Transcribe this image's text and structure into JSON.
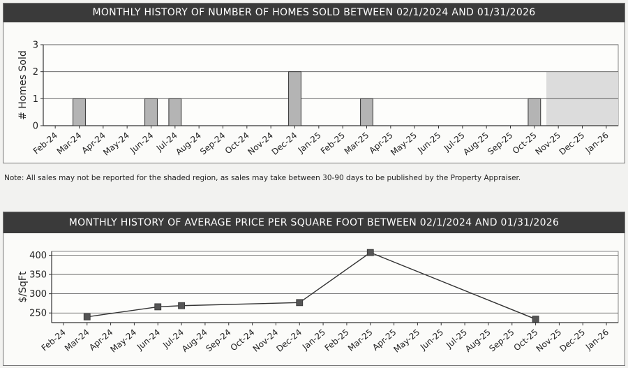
{
  "note": "Note: All sales may not be reported for the shaded region, as sales may take between 30-90 days to be published by the Property Appraiser.",
  "colors": {
    "banner_bg": "#3a3a3a",
    "bar_fill": "#b4b4b4",
    "shaded_region": "#dcdcdc",
    "line": "#333333",
    "marker": "#555555"
  },
  "chart_data": [
    {
      "type": "bar",
      "title": "MONTHLY HISTORY OF NUMBER OF HOMES SOLD BETWEEN 02/1/2024 AND 01/31/2026",
      "xlabel": "",
      "ylabel": "# Homes Sold",
      "ylim": [
        0,
        3
      ],
      "yticks": [
        0,
        1,
        2,
        3
      ],
      "grid": true,
      "categories": [
        "Feb-24",
        "Mar-24",
        "Apr-24",
        "May-24",
        "Jun-24",
        "Jul-24",
        "Aug-24",
        "Sep-24",
        "Oct-24",
        "Nov-24",
        "Dec-24",
        "Jan-25",
        "Feb-25",
        "Mar-25",
        "Apr-25",
        "May-25",
        "Jun-25",
        "Jul-25",
        "Aug-25",
        "Sep-25",
        "Oct-25",
        "Nov-25",
        "Dec-25",
        "Jan-26"
      ],
      "values": [
        0,
        1,
        0,
        0,
        1,
        1,
        0,
        0,
        0,
        0,
        2,
        0,
        0,
        1,
        0,
        0,
        0,
        0,
        0,
        0,
        1,
        0,
        0,
        0
      ],
      "shaded_categories": [
        "Nov-25",
        "Dec-25",
        "Jan-26"
      ],
      "shaded_max": 2
    },
    {
      "type": "line",
      "title": "MONTHLY HISTORY OF AVERAGE PRICE PER SQUARE FOOT BETWEEN 02/1/2024 AND 01/31/2026",
      "xlabel": "",
      "ylabel": "$/SqFt",
      "ylim": [
        225,
        410
      ],
      "yticks": [
        250,
        300,
        350,
        400
      ],
      "grid": true,
      "categories": [
        "Feb-24",
        "Mar-24",
        "Apr-24",
        "May-24",
        "Jun-24",
        "Jul-24",
        "Aug-24",
        "Sep-24",
        "Oct-24",
        "Nov-24",
        "Dec-24",
        "Jan-25",
        "Feb-25",
        "Mar-25",
        "Apr-25",
        "May-25",
        "Jun-25",
        "Jul-25",
        "Aug-25",
        "Sep-25",
        "Oct-25",
        "Nov-25",
        "Dec-25",
        "Jan-26"
      ],
      "values": [
        null,
        240,
        null,
        null,
        266,
        269,
        null,
        null,
        null,
        null,
        277,
        null,
        null,
        407,
        null,
        null,
        null,
        null,
        null,
        null,
        234,
        null,
        null,
        null
      ]
    }
  ]
}
